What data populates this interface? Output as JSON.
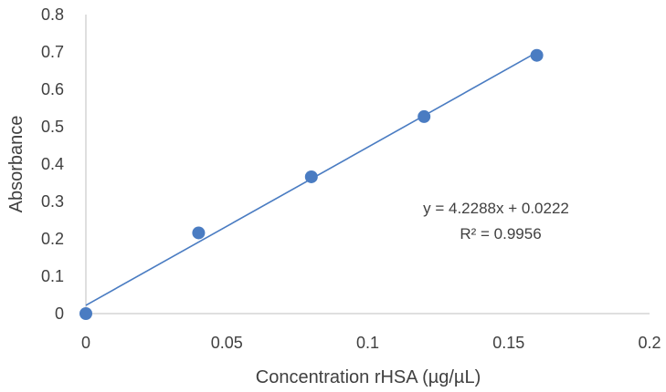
{
  "chart_data": {
    "type": "scatter",
    "title": "",
    "xlabel": "Concentration rHSA (µg/µL)",
    "ylabel": "Absorbance",
    "xlim": [
      0,
      0.2
    ],
    "ylim": [
      0,
      0.8
    ],
    "x_ticks": [
      "0",
      "0.05",
      "0.1",
      "0.15",
      "0.2"
    ],
    "y_ticks": [
      "0",
      "0.1",
      "0.2",
      "0.3",
      "0.4",
      "0.5",
      "0.6",
      "0.7",
      "0.8"
    ],
    "grid": false,
    "legend": "none",
    "series": [
      {
        "x": [
          0,
          0.04,
          0.08,
          0.12,
          0.16
        ],
        "y": [
          0,
          0.216,
          0.366,
          0.527,
          0.691
        ],
        "color": "#4a7cc2"
      }
    ],
    "trendline": {
      "type": "linear",
      "slope": 4.2288,
      "intercept": 0.0222,
      "x_range": [
        0,
        0.16
      ],
      "color": "#4a7cc2",
      "equation_label": "y = 4.2288x + 0.0222",
      "r_squared_label": "R² = 0.9956"
    }
  }
}
